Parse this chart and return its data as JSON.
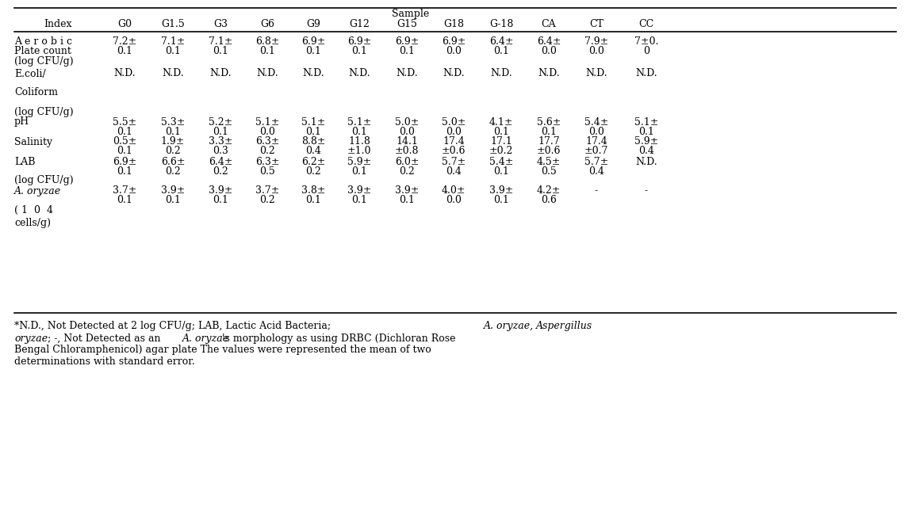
{
  "title": "Sample",
  "columns": [
    "Index",
    "G0",
    "G1.5",
    "G3",
    "G6",
    "G9",
    "G12",
    "G15",
    "G18",
    "G-18",
    "CA",
    "CT",
    "CC"
  ],
  "row1_label": [
    "A e r o b i c",
    "Plate count",
    "(log CFU/g)"
  ],
  "row1_v1": [
    "7.2±",
    "7.1±",
    "7.1±",
    "6.8±",
    "6.9±",
    "6.9±",
    "6.9±",
    "6.9±",
    "6.4±",
    "6.4±",
    "7.9±",
    "7±0."
  ],
  "row1_v2": [
    "0.1",
    "0.1",
    "0.1",
    "0.1",
    "0.1",
    "0.1",
    "0.1",
    "0.0",
    "0.1",
    "0.0",
    "0.0",
    "0"
  ],
  "row2_label": [
    "E.coli/",
    "",
    "Coliform",
    "",
    "(log CFU/g)"
  ],
  "row2_v1": [
    "N.D.",
    "N.D.",
    "N.D.",
    "N.D.",
    "N.D.",
    "N.D.",
    "N.D.",
    "N.D.",
    "N.D.",
    "N.D.",
    "N.D.",
    "N.D."
  ],
  "row3_label": [
    "pH"
  ],
  "row3_v1": [
    "5.5±",
    "5.3±",
    "5.2±",
    "5.1±",
    "5.1±",
    "5.1±",
    "5.0±",
    "5.0±",
    "4.1±",
    "5.6±",
    "5.4±",
    "5.1±"
  ],
  "row3_v2": [
    "0.1",
    "0.1",
    "0.1",
    "0.0",
    "0.1",
    "0.1",
    "0.0",
    "0.0",
    "0.1",
    "0.1",
    "0.0",
    "0.1"
  ],
  "row4_label": [
    "Salinity"
  ],
  "row4_v1": [
    "0.5±",
    "1.9±",
    "3.3±",
    "6.3±",
    "8.8±",
    "11.8",
    "14.1",
    "17.4",
    "17.1",
    "17.7",
    "17.4",
    "5.9±"
  ],
  "row4_v2": [
    "0.1",
    "0.2",
    "0.3",
    "0.2",
    "0.4",
    "±1.0",
    "±0.8",
    "±0.6",
    "±0.2",
    "±0.6",
    "±0.7",
    "0.4"
  ],
  "row5_label": [
    "LAB",
    "(log CFU/g)"
  ],
  "row5_v1": [
    "6.9±",
    "6.6±",
    "6.4±",
    "6.3±",
    "6.2±",
    "5.9±",
    "6.0±",
    "5.7±",
    "5.4±",
    "4.5±",
    "5.7±",
    "N.D."
  ],
  "row5_v2": [
    "0.1",
    "0.2",
    "0.2",
    "0.5",
    "0.2",
    "0.1",
    "0.2",
    "0.4",
    "0.1",
    "0.5",
    "0.4",
    ""
  ],
  "row6_label": [
    "A. oryzae",
    "( 1  0  4",
    "",
    "cells/g)"
  ],
  "row6_v1": [
    "3.7±",
    "3.9±",
    "3.9±",
    "3.7±",
    "3.8±",
    "3.9±",
    "3.9±",
    "4.0±",
    "3.9±",
    "4.2±",
    "-",
    "-"
  ],
  "row6_v2": [
    "0.1",
    "0.1",
    "0.1",
    "0.2",
    "0.1",
    "0.1",
    "0.1",
    "0.0",
    "0.1",
    "0.6",
    "",
    ""
  ],
  "bg_color": "#ffffff",
  "text_color": "#000000",
  "font_size": 9.0,
  "fn_font_size": 9.0
}
